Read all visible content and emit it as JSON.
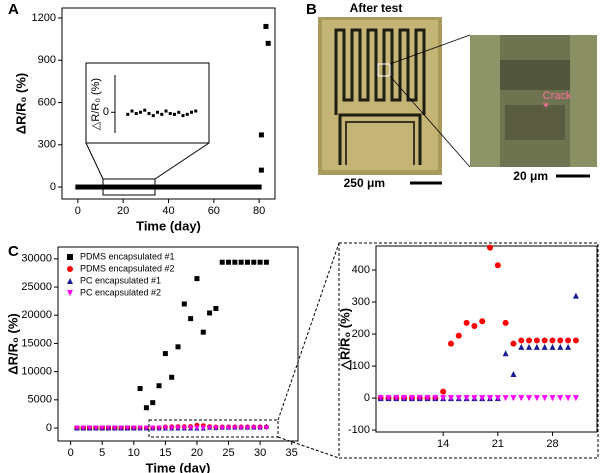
{
  "panel_labels": [
    "A",
    "B",
    "C"
  ],
  "photo": {
    "title": "After test",
    "left_scale": "250 μm",
    "right_scale": "20 μm",
    "annotation": "Crack"
  },
  "chart_data": [
    {
      "type": "scatter",
      "x_label": "Time (day)",
      "y_label": "ΔR/R₀ (%)",
      "xlim": [
        -7,
        87
      ],
      "ylim": [
        -85,
        1271
      ],
      "xticks": [
        0,
        20,
        40,
        60,
        80
      ],
      "yticks": [
        0,
        300,
        600,
        900,
        1200
      ],
      "x": [
        0,
        2,
        4,
        6,
        8,
        10,
        12,
        14,
        16,
        18,
        20,
        22,
        24,
        26,
        28,
        30,
        32,
        34,
        36,
        38,
        40,
        42,
        44,
        46,
        48,
        50,
        52,
        54,
        56,
        58,
        60,
        62,
        64,
        66,
        68,
        70,
        72,
        74,
        76,
        78,
        80,
        81,
        81,
        83,
        84
      ],
      "series": [
        {
          "color": "#000000",
          "marker": "square",
          "values": [
            0,
            0,
            0,
            0,
            0,
            0,
            0,
            0,
            0,
            0,
            0,
            0,
            0,
            0,
            0,
            0,
            0,
            0,
            0,
            0,
            0,
            0,
            0,
            0,
            0,
            0,
            0,
            0,
            0,
            0,
            0,
            0,
            0,
            0,
            0,
            0,
            0,
            0,
            0,
            0,
            0,
            120,
            370,
            1140,
            1020
          ]
        }
      ]
    },
    {
      "type": "scatter",
      "y_label": "△R/R₀ (%)",
      "xlim": [
        10,
        30
      ],
      "ylim": [
        -50,
        90
      ],
      "yticks": [
        0
      ],
      "x": [
        13,
        14,
        15,
        16,
        17,
        18,
        19,
        20,
        21,
        22,
        23,
        24,
        25,
        26,
        27,
        28,
        29
      ],
      "series": [
        {
          "color": "#000000",
          "marker": "square",
          "values": [
            -5,
            3,
            -3,
            0,
            5,
            -3,
            -8,
            0,
            -5,
            3,
            -3,
            -5,
            0,
            -8,
            -5,
            0,
            3
          ]
        }
      ]
    },
    {
      "type": "scatter",
      "x_label": "Time (day)",
      "y_label": "ΔR/R₀ (%)",
      "xlim": [
        -2,
        36
      ],
      "ylim": [
        -2300,
        32100
      ],
      "xticks": [
        0,
        5,
        10,
        15,
        20,
        25,
        30,
        35
      ],
      "yticks": [
        0,
        5000,
        10000,
        15000,
        20000,
        25000,
        30000
      ],
      "legend": "upper left",
      "x": [
        1,
        2,
        3,
        4,
        5,
        6,
        7,
        8,
        9,
        10,
        11,
        12,
        13,
        14,
        15,
        16,
        17,
        18,
        19,
        20,
        21,
        22,
        23,
        24,
        25,
        26,
        27,
        28,
        29,
        30,
        31
      ],
      "series": [
        {
          "name": "PDMS encapsulated #1",
          "color": "#000000",
          "marker": "square",
          "values": [
            0,
            0,
            0,
            0,
            0,
            0,
            0,
            0,
            0,
            0,
            7000,
            3600,
            4500,
            7500,
            13200,
            9000,
            14400,
            22000,
            19400,
            26500,
            17000,
            20400,
            21200,
            29400,
            29400,
            29400,
            29400,
            29400,
            29400,
            29400,
            29400
          ]
        },
        {
          "name": "PDMS encapsulated #2",
          "color": "#ff0000",
          "marker": "circle",
          "values": [
            0,
            0,
            0,
            0,
            0,
            0,
            0,
            0,
            0,
            0,
            0,
            0,
            0,
            20,
            170,
            195,
            235,
            225,
            240,
            470,
            415,
            235,
            170,
            180,
            180,
            180,
            180,
            180,
            180,
            180,
            180
          ]
        },
        {
          "name": "PC encapsulated #1",
          "color": "#1a1a99",
          "marker": "triangle-up",
          "values": [
            0,
            0,
            0,
            0,
            0,
            0,
            0,
            0,
            0,
            0,
            0,
            0,
            0,
            0,
            0,
            0,
            0,
            0,
            0,
            0,
            0,
            140,
            75,
            160,
            160,
            160,
            160,
            160,
            160,
            160,
            320
          ]
        },
        {
          "name": "PC encapsulated #2",
          "color": "#ff00ff",
          "marker": "triangle-down",
          "values": [
            0,
            0,
            0,
            0,
            0,
            0,
            0,
            0,
            0,
            0,
            0,
            0,
            0,
            0,
            0,
            0,
            0,
            0,
            0,
            0,
            0,
            0,
            0,
            0,
            0,
            0,
            0,
            0,
            0,
            0,
            0
          ]
        }
      ]
    },
    {
      "type": "scatter",
      "y_label": "△R/R₀ (%)",
      "xlim": [
        5.4,
        33.7
      ],
      "ylim": [
        -106,
        475
      ],
      "xticks": [
        14,
        21,
        28
      ],
      "yticks": [
        -100,
        0,
        100,
        200,
        300,
        400
      ],
      "x": [
        6,
        7,
        8,
        9,
        10,
        11,
        12,
        13,
        14,
        15,
        16,
        17,
        18,
        19,
        20,
        21,
        22,
        23,
        24,
        25,
        26,
        27,
        28,
        29,
        30,
        31
      ],
      "series": [
        {
          "color": "#ff0000",
          "marker": "circle",
          "values": [
            0,
            0,
            0,
            0,
            0,
            0,
            0,
            0,
            20,
            170,
            195,
            235,
            225,
            240,
            470,
            415,
            235,
            170,
            180,
            180,
            180,
            180,
            180,
            180,
            180,
            180
          ]
        },
        {
          "color": "#1a1a99",
          "marker": "triangle-up",
          "values": [
            0,
            0,
            0,
            0,
            0,
            0,
            0,
            0,
            0,
            0,
            0,
            0,
            0,
            0,
            0,
            0,
            140,
            75,
            160,
            160,
            160,
            160,
            160,
            160,
            160,
            320
          ]
        },
        {
          "color": "#ff00ff",
          "marker": "triangle-down",
          "values": [
            0,
            0,
            0,
            0,
            0,
            0,
            0,
            0,
            0,
            0,
            0,
            0,
            0,
            0,
            0,
            0,
            0,
            0,
            0,
            0,
            0,
            0,
            0,
            0,
            0,
            0
          ]
        }
      ]
    }
  ]
}
